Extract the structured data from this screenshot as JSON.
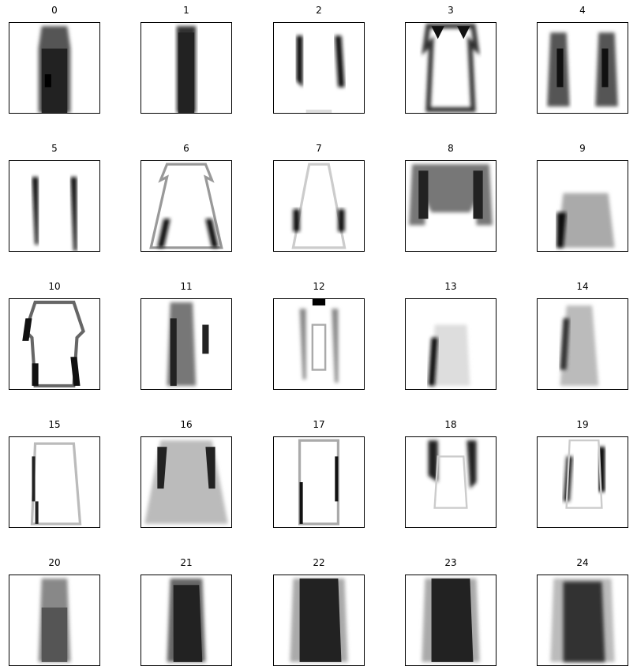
{
  "panels": [
    {
      "title": "0",
      "shape": "dress-dark"
    },
    {
      "title": "1",
      "shape": "dress-narrow-dark"
    },
    {
      "title": "2",
      "shape": "sleeves-only"
    },
    {
      "title": "3",
      "shape": "outline-gown"
    },
    {
      "title": "4",
      "shape": "wide-sleeves-blur"
    },
    {
      "title": "5",
      "shape": "two-strips"
    },
    {
      "title": "6",
      "shape": "flared-outline"
    },
    {
      "title": "7",
      "shape": "faint-flare"
    },
    {
      "title": "8",
      "shape": "wide-top"
    },
    {
      "title": "9",
      "shape": "skirt-block"
    },
    {
      "title": "10",
      "shape": "long-sleeve-outline"
    },
    {
      "title": "11",
      "shape": "offset-dress"
    },
    {
      "title": "12",
      "shape": "sparse-noise"
    },
    {
      "title": "13",
      "shape": "faint-left-dress"
    },
    {
      "title": "14",
      "shape": "noisy-left-dress"
    },
    {
      "title": "15",
      "shape": "light-dress"
    },
    {
      "title": "16",
      "shape": "wide-blur-gown"
    },
    {
      "title": "17",
      "shape": "thin-outline"
    },
    {
      "title": "18",
      "shape": "upper-sleeves"
    },
    {
      "title": "19",
      "shape": "single-sleeve"
    },
    {
      "title": "20",
      "shape": "textured-dress"
    },
    {
      "title": "21",
      "shape": "dark-textured-dress"
    },
    {
      "title": "22",
      "shape": "dark-dress-blur"
    },
    {
      "title": "23",
      "shape": "dark-dress-blur"
    },
    {
      "title": "24",
      "shape": "dark-dress-soft"
    }
  ]
}
